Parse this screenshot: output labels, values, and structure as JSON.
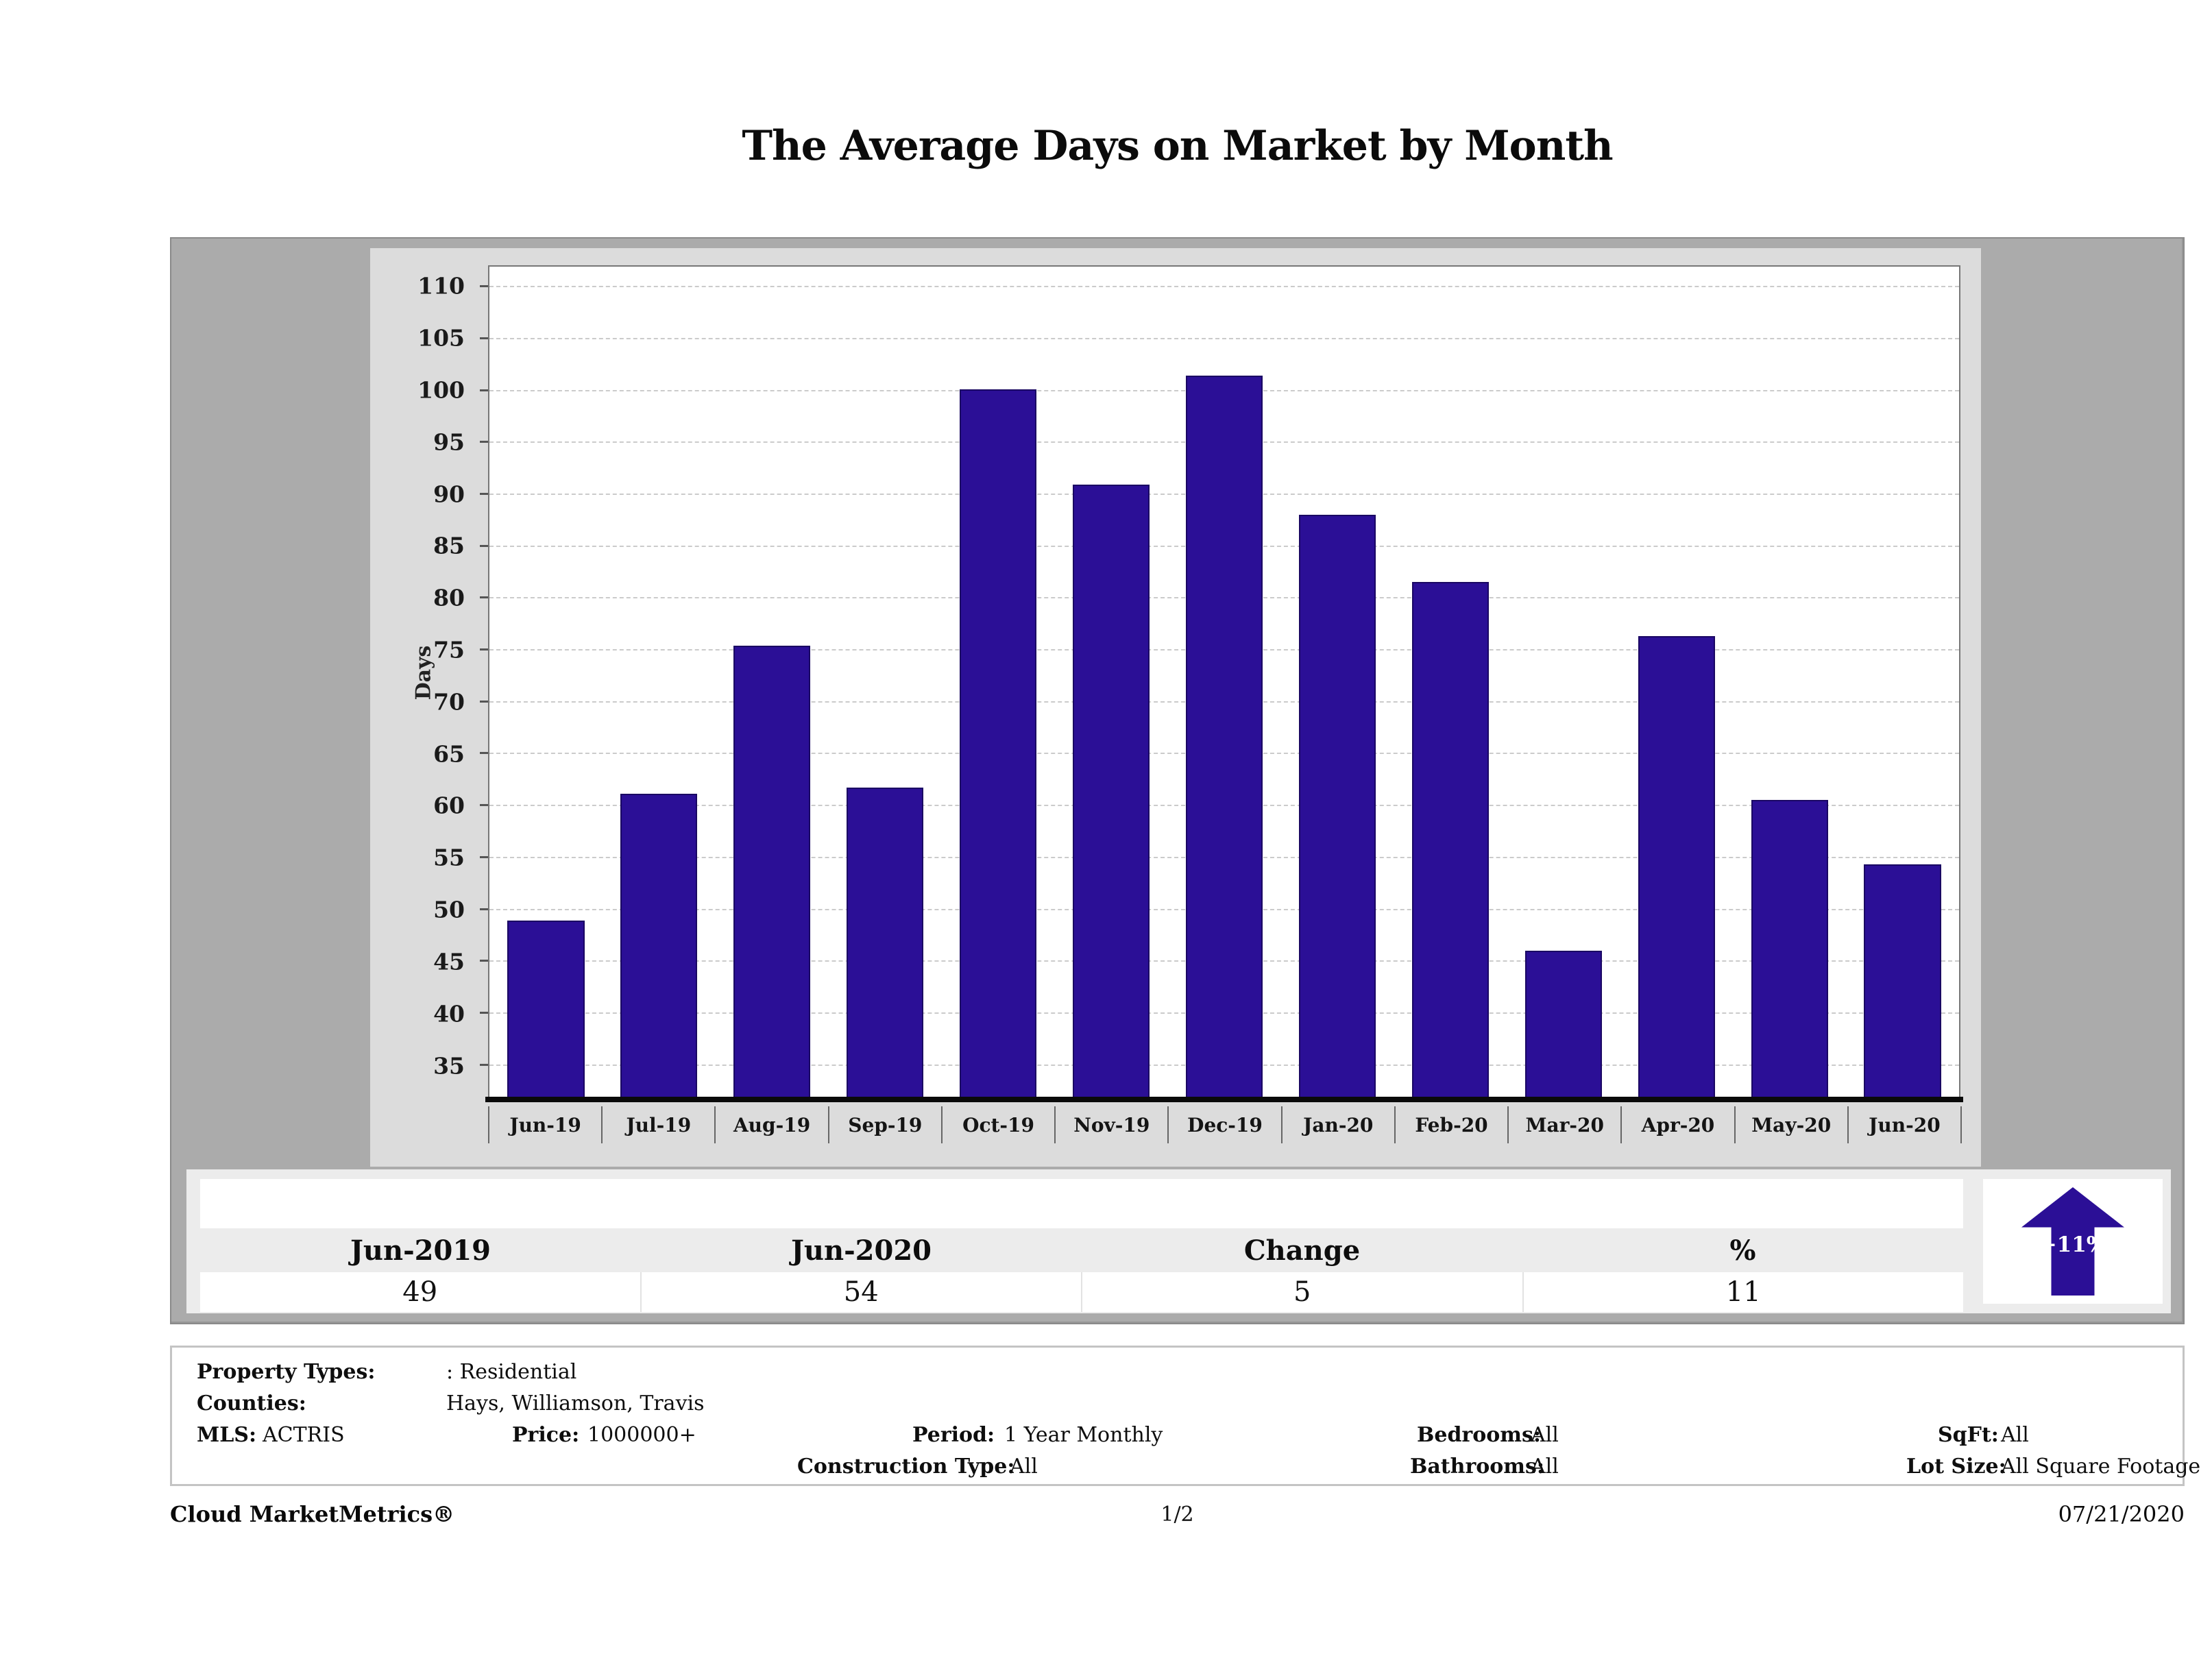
{
  "title": "The Average Days on Market by Month",
  "chart_data": {
    "type": "bar",
    "title": "The Average Days on Market by Month",
    "xlabel": "",
    "ylabel": "Days",
    "categories": [
      "Jun-19",
      "Jul-19",
      "Aug-19",
      "Sep-19",
      "Oct-19",
      "Nov-19",
      "Dec-19",
      "Jan-20",
      "Feb-20",
      "Mar-20",
      "Apr-20",
      "May-20",
      "Jun-20"
    ],
    "values": [
      49,
      61.2,
      75.5,
      61.8,
      100.2,
      91,
      101.5,
      88.1,
      81.6,
      46.1,
      76.4,
      60.6,
      54.4
    ],
    "ylim": [
      32,
      112
    ],
    "yticks": [
      35,
      40,
      45,
      50,
      55,
      60,
      65,
      70,
      75,
      80,
      85,
      90,
      95,
      100,
      105,
      110
    ],
    "grid": true,
    "legend_position": "none",
    "bar_color": "#2b0f96"
  },
  "summary": {
    "columns": [
      "Jun-2019",
      "Jun-2020",
      "Change",
      "%"
    ],
    "values": [
      "49",
      "54",
      "5",
      "11"
    ],
    "badge": {
      "label": "+11%",
      "direction": "up",
      "color": "#2b0f96"
    }
  },
  "filters": {
    "property_types_label": "Property Types:",
    "property_types_value": ": Residential",
    "counties_label": "Counties:",
    "counties_value": "Hays, Williamson, Travis",
    "mls_label": "MLS:",
    "mls_value": "ACTRIS",
    "price_label": "Price:",
    "price_value": "1000000+",
    "period_label": "Period:",
    "period_value": "1 Year Monthly",
    "bedrooms_label": "Bedrooms:",
    "bedrooms_value": "All",
    "sqft_label": "SqFt:",
    "sqft_value": "All",
    "construction_label": "Construction Type:",
    "construction_value": "All",
    "bathrooms_label": "Bathrooms:",
    "bathrooms_value": "All",
    "lot_size_label": "Lot Size:",
    "lot_size_value": "All Square Footage"
  },
  "footer": {
    "brand": "Cloud MarketMetrics®",
    "page": "1/2",
    "date": "07/21/2020"
  }
}
